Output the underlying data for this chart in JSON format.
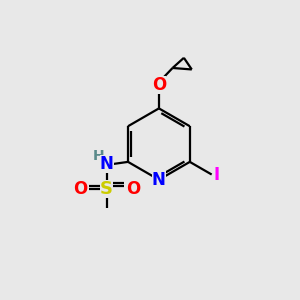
{
  "bg_color": "#e8e8e8",
  "atom_colors": {
    "N": "#0000ff",
    "O": "#ff0000",
    "S": "#cccc00",
    "I": "#ff00ff",
    "H": "#5a8a8a",
    "C": "#000000"
  },
  "font_size": 11,
  "fig_size": [
    3.0,
    3.0
  ],
  "dpi": 100
}
